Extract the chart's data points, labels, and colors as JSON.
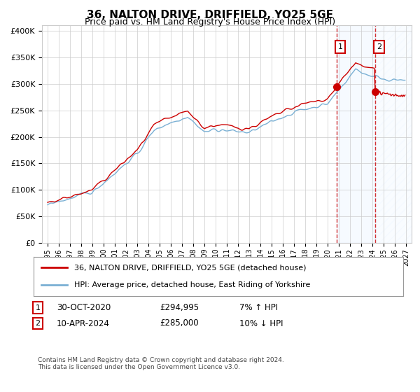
{
  "title": "36, NALTON DRIVE, DRIFFIELD, YO25 5GE",
  "subtitle": "Price paid vs. HM Land Registry's House Price Index (HPI)",
  "ylabel_ticks": [
    "£0",
    "£50K",
    "£100K",
    "£150K",
    "£200K",
    "£250K",
    "£300K",
    "£350K",
    "£400K"
  ],
  "ytick_values": [
    0,
    50000,
    100000,
    150000,
    200000,
    250000,
    300000,
    350000,
    400000
  ],
  "ylim": [
    0,
    410000
  ],
  "xlim_start": 1994.5,
  "xlim_end": 2027.5,
  "hpi_color": "#7ab0d4",
  "price_color": "#cc0000",
  "sale1_x": 2020.83,
  "sale1_y": 294995,
  "sale2_x": 2024.28,
  "sale2_y": 285000,
  "sale1_label": "30-OCT-2020",
  "sale1_price": "£294,995",
  "sale1_hpi": "7% ↑ HPI",
  "sale2_label": "10-APR-2024",
  "sale2_price": "£285,000",
  "sale2_hpi": "10% ↓ HPI",
  "legend_line1": "36, NALTON DRIVE, DRIFFIELD, YO25 5GE (detached house)",
  "legend_line2": "HPI: Average price, detached house, East Riding of Yorkshire",
  "footer": "Contains HM Land Registry data © Crown copyright and database right 2024.\nThis data is licensed under the Open Government Licence v3.0.",
  "background_color": "#ffffff",
  "grid_color": "#cccccc",
  "shaded_region_color": "#ddeeff",
  "hatch_color": "#c8d8e8"
}
